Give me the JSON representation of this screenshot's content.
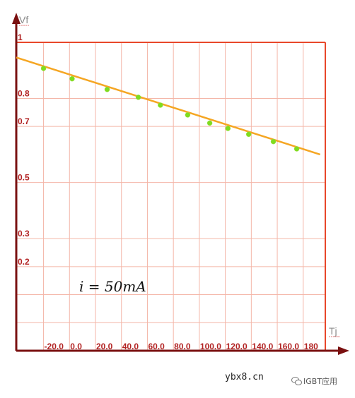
{
  "chart_data": {
    "type": "line",
    "x_label": "Tj",
    "y_label": "Vf",
    "annotation": "i = 50mA",
    "x_tick_labels": [
      "-20.0",
      "0.0",
      "20.0",
      "40.0",
      "60.0",
      "80.0",
      "100.0",
      "120.0",
      "140.0",
      "160.0",
      "180"
    ],
    "x_ticks": [
      -20,
      0,
      20,
      40,
      60,
      80,
      100,
      120,
      140,
      160,
      180
    ],
    "y_tick_labels": [
      "1",
      "0.8",
      "0.7",
      "0.5",
      "0.3",
      "0.2"
    ],
    "y_ticks": [
      1.0,
      0.8,
      0.7,
      0.5,
      0.3,
      0.2
    ],
    "xlim": [
      -41,
      197
    ],
    "ylim": [
      -0.1,
      1.0
    ],
    "grid": true,
    "series": [
      {
        "color": "#f5a623",
        "marker_color": "#7fdc1f",
        "points": [
          {
            "x": -20,
            "y": 0.907
          },
          {
            "x": 2,
            "y": 0.87
          },
          {
            "x": 29,
            "y": 0.832
          },
          {
            "x": 53,
            "y": 0.804
          },
          {
            "x": 70,
            "y": 0.776
          },
          {
            "x": 91,
            "y": 0.741
          },
          {
            "x": 108,
            "y": 0.712
          },
          {
            "x": 122,
            "y": 0.693
          },
          {
            "x": 138,
            "y": 0.672
          },
          {
            "x": 157,
            "y": 0.646
          },
          {
            "x": 175,
            "y": 0.62
          }
        ],
        "trend_start": {
          "x": -41,
          "y": 0.946
        },
        "trend_end": {
          "x": 193,
          "y": 0.6
        }
      }
    ]
  },
  "footer": {
    "site": "ybx8.cn",
    "brand": "IGBT应用"
  }
}
